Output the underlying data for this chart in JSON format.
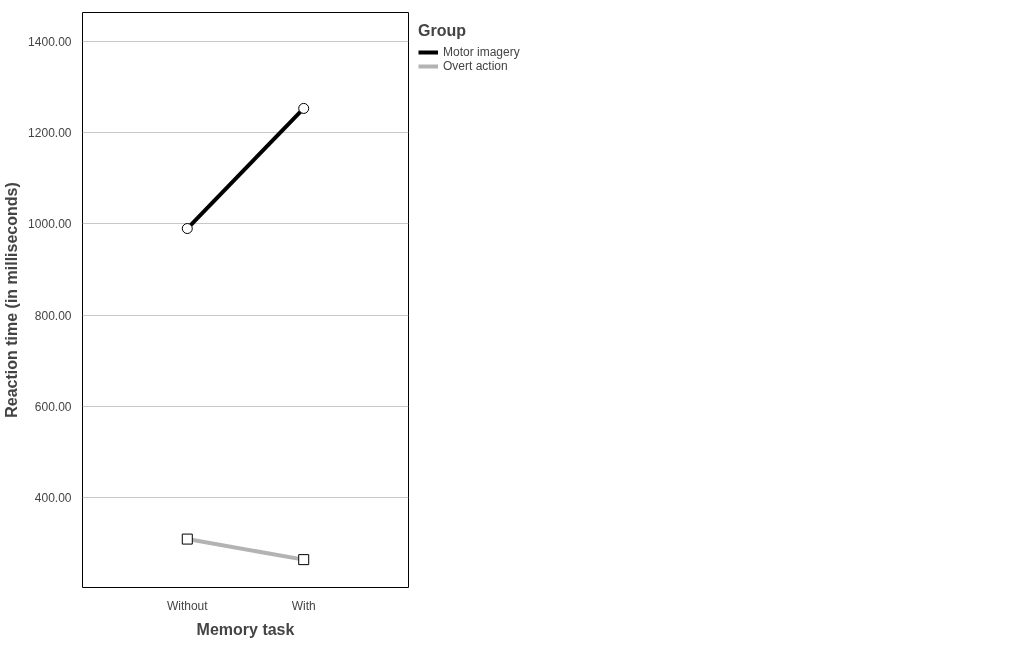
{
  "chart_data": {
    "type": "line",
    "xlabel": "Memory task",
    "ylabel": "Reaction time (in milliseconds)",
    "legend_title": "Group",
    "categories": [
      "Without",
      "With"
    ],
    "series": [
      {
        "name": "Motor imagery",
        "color": "#000000",
        "values": [
          990,
          1253
        ],
        "marker": "circle"
      },
      {
        "name": "Overt action",
        "color": "#b3b3b3",
        "values": [
          310,
          265
        ],
        "marker": "square"
      }
    ],
    "ylim": [
      204,
      1463
    ],
    "yticks": [
      {
        "value": 400,
        "label": "400.00"
      },
      {
        "value": 600,
        "label": "600.00"
      },
      {
        "value": 800,
        "label": "800.00"
      },
      {
        "value": 1000,
        "label": "1000.00"
      },
      {
        "value": 1200,
        "label": "1200.00"
      },
      {
        "value": 1400,
        "label": "1400.00"
      }
    ],
    "grid": "y",
    "legend": "top right",
    "line_style": "solid"
  }
}
